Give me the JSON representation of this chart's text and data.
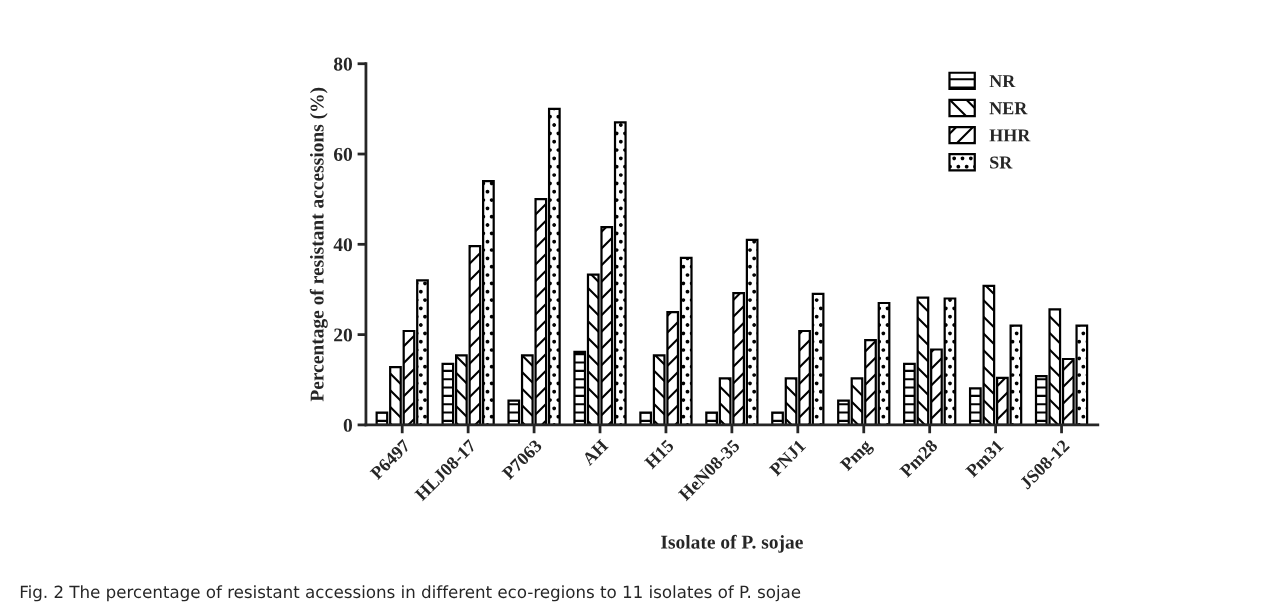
{
  "chart_data": {
    "type": "bar",
    "xlabel": "Isolate of P. sojae",
    "ylabel": "Percentage of resistant accessions (%)",
    "categories": [
      "P6497",
      "HLJ08-17",
      "P7063",
      "AH",
      "H15",
      "HeN08-35",
      "PNJ1",
      "Pmg",
      "Pm28",
      "Pm31",
      "JS08-12"
    ],
    "series": [
      {
        "name": "NR",
        "color": "#000000",
        "values": [
          2.7,
          13.5,
          5.4,
          16.2,
          2.7,
          2.7,
          2.7,
          5.4,
          13.5,
          8.1,
          10.8
        ]
      },
      {
        "name": "NER",
        "color": "#000000",
        "values": [
          12.8,
          15.4,
          15.4,
          33.3,
          15.4,
          10.3,
          10.3,
          10.3,
          28.2,
          30.8,
          25.6
        ]
      },
      {
        "name": "HHR",
        "color": "#000000",
        "values": [
          20.8,
          39.6,
          50,
          43.8,
          25,
          29.2,
          20.8,
          18.8,
          16.7,
          10.4,
          14.6
        ]
      },
      {
        "name": "SR",
        "color": "#000000",
        "values": [
          32,
          54,
          70,
          67,
          37,
          41,
          29,
          27,
          28,
          22,
          22
        ]
      }
    ],
    "ylim": [
      0,
      80
    ],
    "yticks": [
      0,
      20,
      40,
      60,
      80
    ],
    "grid": false,
    "legend": "top right",
    "annotations": [
      "Fig. 2 The percentage of resistant accessions in different eco-regions to 11 isolates of P. sojae"
    ]
  }
}
